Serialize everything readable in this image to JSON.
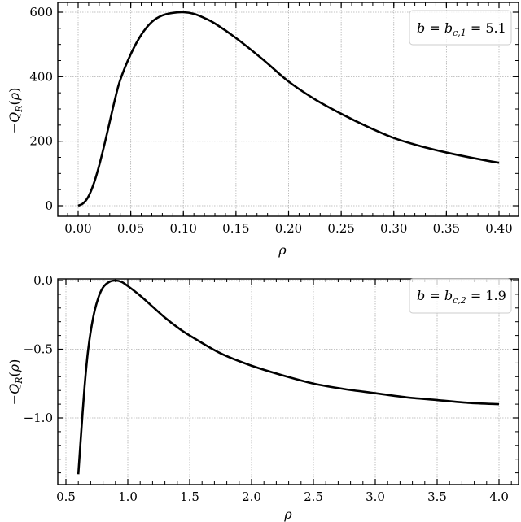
{
  "chart_data": [
    {
      "type": "line",
      "title": "",
      "xlabel": "ρ",
      "ylabel": "−Q_R(ρ)",
      "legend": [
        "b = b_{c,1} = 5.1"
      ],
      "legend_position": "upper right",
      "grid": true,
      "xlim": [
        -0.02,
        0.42
      ],
      "ylim": [
        -35,
        635
      ],
      "xticks": [
        0.0,
        0.05,
        0.1,
        0.15,
        0.2,
        0.25,
        0.3,
        0.35,
        0.4
      ],
      "xtick_labels": [
        "0.00",
        "0.05",
        "0.10",
        "0.15",
        "0.20",
        "0.25",
        "0.30",
        "0.35",
        "0.40"
      ],
      "yticks": [
        0,
        200,
        400,
        600
      ],
      "ytick_labels": [
        "0",
        "200",
        "400",
        "600"
      ],
      "series": [
        {
          "name": "b = b_{c,1} = 5.1",
          "x": [
            0.0,
            0.005,
            0.01,
            0.015,
            0.02,
            0.025,
            0.03,
            0.035,
            0.04,
            0.05,
            0.06,
            0.07,
            0.08,
            0.09,
            0.1,
            0.11,
            0.12,
            0.13,
            0.15,
            0.175,
            0.2,
            0.225,
            0.25,
            0.275,
            0.3,
            0.325,
            0.35,
            0.375,
            0.4
          ],
          "values": [
            0,
            8,
            30,
            70,
            125,
            190,
            260,
            330,
            390,
            470,
            530,
            570,
            590,
            598,
            600,
            595,
            582,
            565,
            520,
            455,
            385,
            330,
            285,
            245,
            210,
            185,
            165,
            148,
            133
          ]
        }
      ]
    },
    {
      "type": "line",
      "title": "",
      "xlabel": "ρ",
      "ylabel": "−Q_R(ρ)",
      "legend": [
        "b = b_{c,2} = 1.9"
      ],
      "legend_position": "upper right",
      "grid": true,
      "xlim": [
        0.44,
        4.18
      ],
      "ylim": [
        -1.49,
        0.02
      ],
      "xticks": [
        0.5,
        1.0,
        1.5,
        2.0,
        2.5,
        3.0,
        3.5,
        4.0
      ],
      "xtick_labels": [
        "0.5",
        "1.0",
        "1.5",
        "2.0",
        "2.5",
        "3.0",
        "3.5",
        "4.0"
      ],
      "yticks": [
        0.0,
        -0.5,
        -1.0
      ],
      "ytick_labels": [
        "0.0",
        "−0.5",
        "−1.0"
      ],
      "series": [
        {
          "name": "b = b_{c,2} = 1.9",
          "x": [
            0.6,
            0.62,
            0.65,
            0.68,
            0.72,
            0.76,
            0.8,
            0.85,
            0.9,
            0.95,
            1.0,
            1.1,
            1.2,
            1.3,
            1.4,
            1.5,
            1.75,
            2.0,
            2.25,
            2.5,
            2.75,
            3.0,
            3.25,
            3.5,
            3.75,
            4.0
          ],
          "values": [
            -1.41,
            -1.15,
            -0.78,
            -0.5,
            -0.27,
            -0.13,
            -0.05,
            -0.01,
            0.0,
            -0.01,
            -0.04,
            -0.11,
            -0.19,
            -0.27,
            -0.34,
            -0.4,
            -0.53,
            -0.62,
            -0.69,
            -0.75,
            -0.79,
            -0.82,
            -0.85,
            -0.87,
            -0.89,
            -0.9
          ]
        }
      ]
    }
  ],
  "plots": {
    "top": {
      "legend_label": "b = b",
      "legend_sub": "c,1",
      "legend_value": " = 5.1",
      "ylabel_prefix": "−Q",
      "ylabel_sub": "R",
      "ylabel_suffix": "(ρ)",
      "xlabel": "ρ",
      "xticks": [
        "0.00",
        "0.05",
        "0.10",
        "0.15",
        "0.20",
        "0.25",
        "0.30",
        "0.35",
        "0.40"
      ],
      "yticks": [
        "0",
        "200",
        "400",
        "600"
      ]
    },
    "bottom": {
      "legend_label": "b = b",
      "legend_sub": "c,2",
      "legend_value": " = 1.9",
      "ylabel_prefix": "−Q",
      "ylabel_sub": "R",
      "ylabel_suffix": "(ρ)",
      "xlabel": "ρ",
      "xticks": [
        "0.5",
        "1.0",
        "1.5",
        "2.0",
        "2.5",
        "3.0",
        "3.5",
        "4.0"
      ],
      "yticks": [
        "0.0",
        "−0.5",
        "−1.0"
      ]
    }
  },
  "colors": {
    "line": "#000000",
    "grid": "#b0b0b0",
    "frame": "#000000",
    "legend_border": "#cccccc"
  }
}
